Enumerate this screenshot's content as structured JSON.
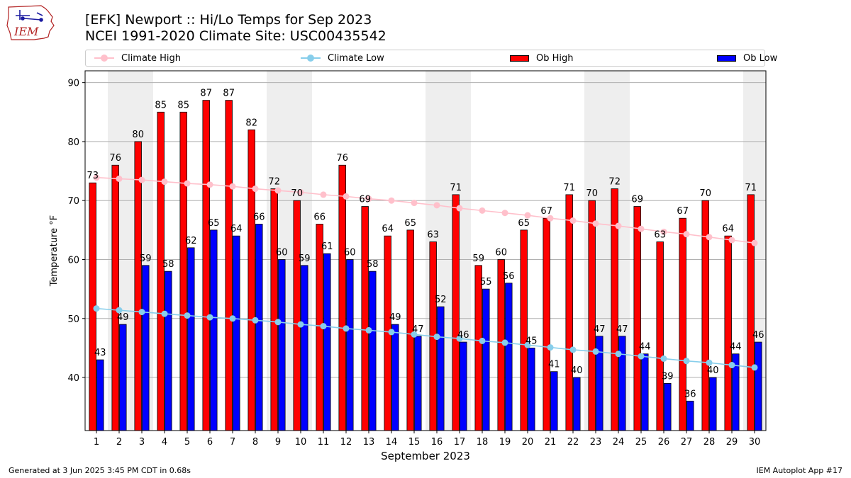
{
  "header": {
    "title_line1": "[EFK] Newport :: Hi/Lo Temps for Sep 2023",
    "title_line2": "NCEI 1991-2020 Climate Site: USC00435542",
    "logo_text": "IEM"
  },
  "legend": [
    {
      "label": "Climate High",
      "kind": "line",
      "color": "#ffc0cb"
    },
    {
      "label": "Climate Low",
      "kind": "line",
      "color": "#87ceeb"
    },
    {
      "label": "Ob High",
      "kind": "bar",
      "color": "#ff0000"
    },
    {
      "label": "Ob Low",
      "kind": "bar",
      "color": "#0000ff"
    }
  ],
  "footer": {
    "left": "Generated at 3 Jun 2025 3:45 PM CDT in 0.68s",
    "right": "IEM Autoplot App #17"
  },
  "chart_data": {
    "type": "bar",
    "xlabel": "September 2023",
    "ylabel": "Temperature °F",
    "ylim": [
      31,
      92
    ],
    "yticks": [
      40,
      50,
      60,
      70,
      80,
      90
    ],
    "grid": true,
    "legend_position": "top",
    "weekend_days": [
      2,
      3,
      9,
      10,
      16,
      17,
      23,
      24,
      30
    ],
    "categories": [
      "1",
      "2",
      "3",
      "4",
      "5",
      "6",
      "7",
      "8",
      "9",
      "10",
      "11",
      "12",
      "13",
      "14",
      "15",
      "16",
      "17",
      "18",
      "19",
      "20",
      "21",
      "22",
      "23",
      "24",
      "25",
      "26",
      "27",
      "28",
      "29",
      "30"
    ],
    "series": [
      {
        "name": "Ob High",
        "type": "bar",
        "color": "#ff0000",
        "values": [
          73,
          76,
          80,
          85,
          85,
          87,
          87,
          82,
          72,
          70,
          66,
          76,
          69,
          64,
          65,
          63,
          71,
          59,
          60,
          65,
          67,
          71,
          70,
          72,
          69,
          63,
          67,
          70,
          64,
          71
        ]
      },
      {
        "name": "Ob Low",
        "type": "bar",
        "color": "#0000ff",
        "values": [
          43,
          49,
          59,
          58,
          62,
          65,
          64,
          66,
          60,
          59,
          61,
          60,
          58,
          49,
          47,
          52,
          46,
          55,
          56,
          45,
          41,
          40,
          47,
          47,
          44,
          39,
          36,
          40,
          44,
          46
        ]
      },
      {
        "name": "Climate High",
        "type": "line",
        "color": "#ffc0cb",
        "values": [
          73.9,
          73.7,
          73.5,
          73.2,
          72.9,
          72.7,
          72.4,
          72.0,
          71.7,
          71.4,
          71.0,
          70.7,
          70.3,
          70.0,
          69.6,
          69.2,
          68.7,
          68.3,
          67.9,
          67.5,
          67.0,
          66.6,
          66.1,
          65.7,
          65.2,
          64.7,
          64.3,
          63.8,
          63.3,
          62.8
        ]
      },
      {
        "name": "Climate Low",
        "type": "line",
        "color": "#87ceeb",
        "values": [
          51.7,
          51.4,
          51.1,
          50.8,
          50.5,
          50.2,
          50.0,
          49.7,
          49.4,
          49.0,
          48.7,
          48.3,
          48.0,
          47.7,
          47.3,
          46.9,
          46.6,
          46.2,
          45.9,
          45.5,
          45.1,
          44.7,
          44.4,
          44.0,
          43.6,
          43.2,
          42.8,
          42.5,
          42.1,
          41.7
        ]
      }
    ]
  }
}
